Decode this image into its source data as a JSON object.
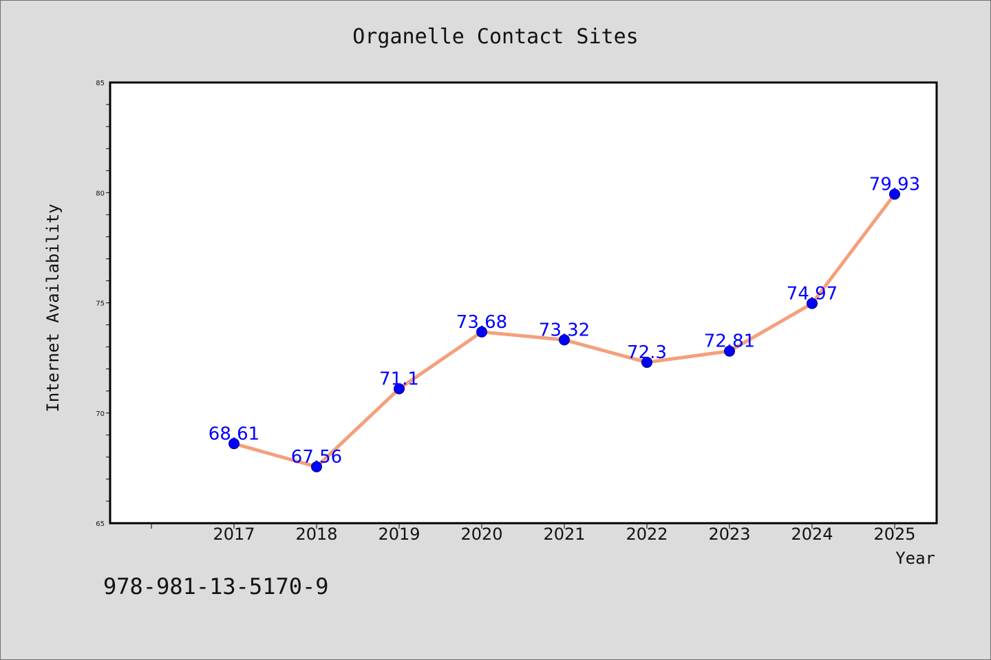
{
  "chart_data": {
    "type": "line",
    "title": "Organelle Contact Sites",
    "xlabel": "Year",
    "ylabel": "Internet Availability",
    "x": [
      "2017",
      "2018",
      "2019",
      "2020",
      "2021",
      "2022",
      "2023",
      "2024",
      "2025"
    ],
    "values": [
      68.61,
      67.56,
      71.1,
      73.68,
      73.32,
      72.3,
      72.81,
      74.97,
      79.93
    ],
    "data_labels": [
      "68.61",
      "67.56",
      "71.1",
      "73.68",
      "73.32",
      "72.3",
      "72.81",
      "74.97",
      "79.93"
    ],
    "ylim": [
      65,
      85
    ],
    "yticks": [
      "65",
      "70",
      "75",
      "80",
      "85"
    ],
    "grid": false,
    "legend": "none",
    "annotation": "978-981-13-5170-9",
    "colors": {
      "line": "#f4a07c",
      "marker": "#0000ff",
      "data_label": "#0000ff",
      "plot_background": "#ffffff",
      "figure_background": "#dcdcdc"
    }
  }
}
